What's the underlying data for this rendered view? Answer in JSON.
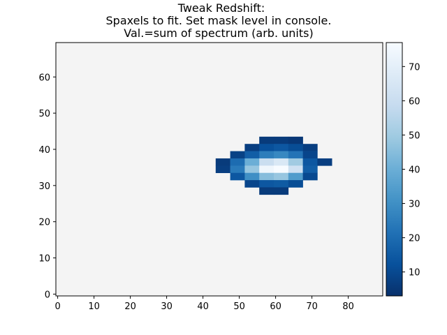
{
  "figure": {
    "title_lines": [
      "Tweak Redshift:",
      "Spaxels to fit. Set mask level in console.",
      "Val.=sum of spectrum (arb. units)"
    ]
  },
  "chart_data": {
    "type": "heatmap",
    "title": "Tweak Redshift:\nSpaxels to fit. Set mask level in console.\nVal.=sum of spectrum (arb. units)",
    "xlabel": "",
    "ylabel": "",
    "xlim": [
      -0.5,
      89.5
    ],
    "ylim": [
      -0.5,
      69.5
    ],
    "x_ticks": [
      0,
      10,
      20,
      30,
      40,
      50,
      60,
      70,
      80
    ],
    "y_ticks": [
      0,
      10,
      20,
      30,
      40,
      50,
      60
    ],
    "background_color": "#f4f4f4",
    "colormap": "Blues_r",
    "colorbar": {
      "range": [
        3,
        77
      ],
      "ticks": [
        10,
        20,
        30,
        40,
        50,
        60,
        70
      ]
    },
    "cell_size": [
      4,
      2
    ],
    "cells": [
      {
        "x": 56,
        "y": 42,
        "v": 6
      },
      {
        "x": 60,
        "y": 42,
        "v": 6
      },
      {
        "x": 64,
        "y": 42,
        "v": 5
      },
      {
        "x": 52,
        "y": 40,
        "v": 7
      },
      {
        "x": 56,
        "y": 40,
        "v": 12
      },
      {
        "x": 60,
        "y": 40,
        "v": 14
      },
      {
        "x": 64,
        "y": 40,
        "v": 11
      },
      {
        "x": 68,
        "y": 40,
        "v": 7
      },
      {
        "x": 48,
        "y": 38,
        "v": 8
      },
      {
        "x": 52,
        "y": 38,
        "v": 16
      },
      {
        "x": 56,
        "y": 38,
        "v": 25
      },
      {
        "x": 60,
        "y": 38,
        "v": 28
      },
      {
        "x": 64,
        "y": 38,
        "v": 22
      },
      {
        "x": 68,
        "y": 38,
        "v": 9
      },
      {
        "x": 44,
        "y": 36,
        "v": 6
      },
      {
        "x": 48,
        "y": 36,
        "v": 20
      },
      {
        "x": 52,
        "y": 36,
        "v": 40
      },
      {
        "x": 56,
        "y": 36,
        "v": 60
      },
      {
        "x": 60,
        "y": 36,
        "v": 66
      },
      {
        "x": 64,
        "y": 36,
        "v": 50
      },
      {
        "x": 68,
        "y": 36,
        "v": 14
      },
      {
        "x": 72,
        "y": 36,
        "v": 7
      },
      {
        "x": 44,
        "y": 34,
        "v": 7
      },
      {
        "x": 48,
        "y": 34,
        "v": 24
      },
      {
        "x": 52,
        "y": 34,
        "v": 48
      },
      {
        "x": 56,
        "y": 34,
        "v": 74
      },
      {
        "x": 60,
        "y": 34,
        "v": 77
      },
      {
        "x": 64,
        "y": 34,
        "v": 62
      },
      {
        "x": 68,
        "y": 34,
        "v": 16
      },
      {
        "x": 48,
        "y": 32,
        "v": 14
      },
      {
        "x": 52,
        "y": 32,
        "v": 30
      },
      {
        "x": 56,
        "y": 32,
        "v": 45
      },
      {
        "x": 60,
        "y": 32,
        "v": 48
      },
      {
        "x": 64,
        "y": 32,
        "v": 34
      },
      {
        "x": 68,
        "y": 32,
        "v": 10
      },
      {
        "x": 52,
        "y": 30,
        "v": 9
      },
      {
        "x": 56,
        "y": 30,
        "v": 14
      },
      {
        "x": 60,
        "y": 30,
        "v": 15
      },
      {
        "x": 64,
        "y": 30,
        "v": 11
      },
      {
        "x": 56,
        "y": 28,
        "v": 6
      },
      {
        "x": 60,
        "y": 28,
        "v": 6
      }
    ]
  }
}
